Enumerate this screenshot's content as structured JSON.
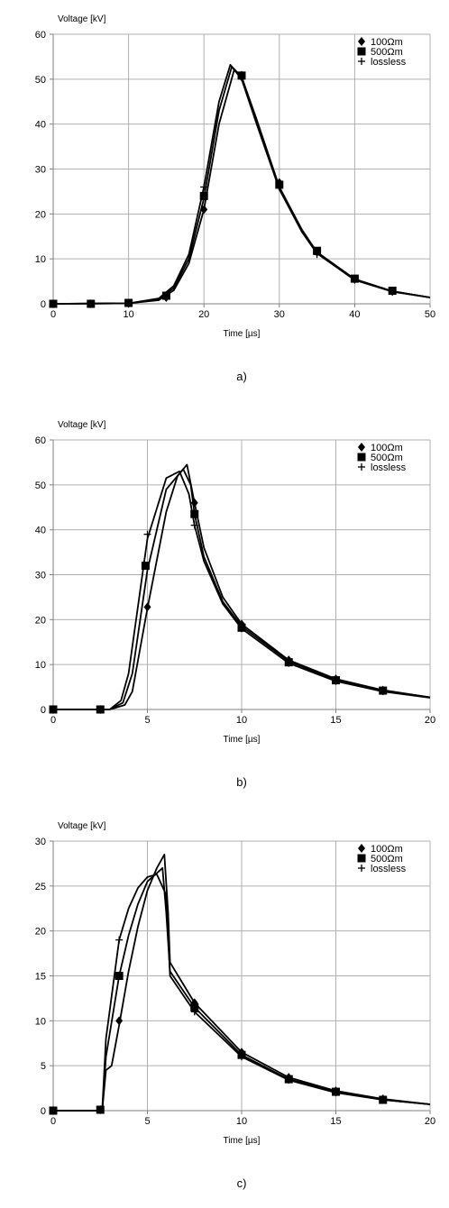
{
  "chart_data": [
    {
      "type": "line",
      "xlabel": "Time [µs]",
      "ylabel": "Voltage [kV]",
      "xlim": [
        0,
        50
      ],
      "ylim": [
        0,
        60
      ],
      "xticks": [
        "0",
        "10",
        "20",
        "30",
        "40",
        "50"
      ],
      "yticks": [
        "0",
        "10",
        "20",
        "30",
        "40",
        "50",
        "60"
      ],
      "grid": true,
      "legend_position": "top-right",
      "caption": "a)",
      "series": [
        {
          "name": "100Ωm",
          "marker": "diamond",
          "points": [
            [
              0,
              0
            ],
            [
              10,
              0.1
            ],
            [
              14,
              0.8
            ],
            [
              16,
              3
            ],
            [
              18,
              9
            ],
            [
              20,
              21
            ],
            [
              22,
              40
            ],
            [
              24,
              52
            ],
            [
              25,
              50.5
            ],
            [
              27,
              41
            ],
            [
              30,
              26
            ],
            [
              33,
              16.5
            ],
            [
              35,
              11.5
            ],
            [
              40,
              5.5
            ],
            [
              45,
              2.8
            ],
            [
              50,
              1.4
            ]
          ],
          "markers": [
            [
              0,
              0
            ],
            [
              5,
              0
            ],
            [
              10,
              0.1
            ],
            [
              15,
              1.4
            ],
            [
              20,
              21
            ],
            [
              25,
              50.5
            ],
            [
              30,
              27
            ],
            [
              35,
              11.5
            ],
            [
              40,
              5.5
            ],
            [
              45,
              2.8
            ]
          ]
        },
        {
          "name": "500Ωm",
          "marker": "square",
          "points": [
            [
              0,
              0
            ],
            [
              10,
              0.1
            ],
            [
              14,
              1
            ],
            [
              16,
              3.5
            ],
            [
              18,
              10
            ],
            [
              20,
              23.5
            ],
            [
              22,
              43
            ],
            [
              23.7,
              52.8
            ],
            [
              25,
              50.5
            ],
            [
              27,
              40.5
            ],
            [
              30,
              26
            ],
            [
              33,
              16.2
            ],
            [
              35,
              11.5
            ],
            [
              40,
              5.5
            ],
            [
              45,
              2.8
            ],
            [
              50,
              1.4
            ]
          ],
          "markers": [
            [
              0,
              0
            ],
            [
              5,
              0
            ],
            [
              10,
              0.2
            ],
            [
              15,
              1.8
            ],
            [
              20,
              24
            ],
            [
              25,
              50.8
            ],
            [
              30,
              26.5
            ],
            [
              35,
              11.8
            ],
            [
              40,
              5.6
            ],
            [
              45,
              2.9
            ]
          ]
        },
        {
          "name": "lossless",
          "marker": "plus",
          "points": [
            [
              0,
              0
            ],
            [
              10,
              0.1
            ],
            [
              14,
              1.2
            ],
            [
              16,
              4
            ],
            [
              18,
              11
            ],
            [
              20,
              26
            ],
            [
              22,
              45
            ],
            [
              23.5,
              53.2
            ],
            [
              25,
              50
            ],
            [
              27,
              40
            ],
            [
              30,
              25.5
            ],
            [
              33,
              16
            ],
            [
              35,
              11.2
            ],
            [
              40,
              5.3
            ],
            [
              45,
              2.7
            ],
            [
              50,
              1.4
            ]
          ],
          "markers": [
            [
              0,
              0
            ],
            [
              5,
              0
            ],
            [
              10,
              0.2
            ],
            [
              15,
              2
            ],
            [
              20,
              26
            ],
            [
              25,
              51
            ],
            [
              30,
              26
            ],
            [
              35,
              11
            ],
            [
              40,
              5.3
            ],
            [
              45,
              2.6
            ]
          ]
        }
      ]
    },
    {
      "type": "line",
      "xlabel": "Time [µs]",
      "ylabel": "Voltage [kV]",
      "xlim": [
        0,
        20
      ],
      "ylim": [
        0,
        60
      ],
      "xticks": [
        "0",
        "5",
        "10",
        "15",
        "20"
      ],
      "yticks": [
        "0",
        "10",
        "20",
        "30",
        "40",
        "50",
        "60"
      ],
      "grid": true,
      "legend_position": "top-right",
      "caption": "b)",
      "series": [
        {
          "name": "100Ωm",
          "marker": "diamond",
          "points": [
            [
              0,
              0
            ],
            [
              3,
              0
            ],
            [
              3.8,
              1
            ],
            [
              4.2,
              4
            ],
            [
              5,
              22.5
            ],
            [
              6,
              44
            ],
            [
              6.6,
              52
            ],
            [
              7.1,
              54.5
            ],
            [
              7.5,
              46
            ],
            [
              8,
              36
            ],
            [
              9,
              25
            ],
            [
              10,
              19
            ],
            [
              12.5,
              11
            ],
            [
              15,
              6.8
            ],
            [
              17.5,
              4.3
            ],
            [
              20,
              2.7
            ]
          ],
          "markers": [
            [
              0,
              0
            ],
            [
              2.5,
              0
            ],
            [
              5,
              22.8
            ],
            [
              7.5,
              46
            ],
            [
              10,
              19
            ],
            [
              12.5,
              11
            ],
            [
              15,
              6.8
            ],
            [
              17.5,
              4.3
            ]
          ]
        },
        {
          "name": "500Ωm",
          "marker": "square",
          "points": [
            [
              0,
              0
            ],
            [
              3,
              0
            ],
            [
              3.7,
              1.5
            ],
            [
              4.2,
              8
            ],
            [
              5,
              31
            ],
            [
              6,
              49
            ],
            [
              6.9,
              53.5
            ],
            [
              7.3,
              50
            ],
            [
              7.5,
              43.5
            ],
            [
              8,
              34
            ],
            [
              9,
              24
            ],
            [
              10,
              18.5
            ],
            [
              12.5,
              10.7
            ],
            [
              15,
              6.6
            ],
            [
              17.5,
              4.2
            ],
            [
              20,
              2.7
            ]
          ],
          "markers": [
            [
              0,
              0
            ],
            [
              2.5,
              0
            ],
            [
              4.9,
              32
            ],
            [
              7.5,
              43.5
            ],
            [
              10,
              18.2
            ],
            [
              12.5,
              10.5
            ],
            [
              15,
              6.5
            ],
            [
              17.5,
              4.2
            ]
          ]
        },
        {
          "name": "lossless",
          "marker": "plus",
          "points": [
            [
              0,
              0
            ],
            [
              3,
              0
            ],
            [
              3.6,
              2
            ],
            [
              4,
              8
            ],
            [
              5,
              38
            ],
            [
              6,
              51.5
            ],
            [
              6.7,
              53
            ],
            [
              7.2,
              48
            ],
            [
              7.5,
              41
            ],
            [
              8,
              33
            ],
            [
              9,
              23.5
            ],
            [
              10,
              18
            ],
            [
              12.5,
              10.3
            ],
            [
              15,
              6.3
            ],
            [
              17.5,
              4
            ],
            [
              20,
              2.6
            ]
          ],
          "markers": [
            [
              0,
              0
            ],
            [
              2.5,
              0
            ],
            [
              5,
              39
            ],
            [
              7.5,
              41
            ],
            [
              10,
              18
            ],
            [
              12.5,
              10.3
            ],
            [
              15,
              6.3
            ],
            [
              17.5,
              4
            ]
          ]
        }
      ]
    },
    {
      "type": "line",
      "xlabel": "Time [µs]",
      "ylabel": "Voltage [kV]",
      "xlim": [
        0,
        20
      ],
      "ylim": [
        0,
        30
      ],
      "xticks": [
        "0",
        "5",
        "10",
        "15",
        "20"
      ],
      "yticks": [
        "0",
        "5",
        "10",
        "15",
        "20",
        "25",
        "30"
      ],
      "grid": true,
      "legend_position": "top-right",
      "caption": "c)",
      "series": [
        {
          "name": "100Ωm",
          "marker": "diamond",
          "points": [
            [
              0,
              0
            ],
            [
              2.6,
              0
            ],
            [
              2.8,
              4.5
            ],
            [
              3.1,
              5
            ],
            [
              3.5,
              9.5
            ],
            [
              4,
              15.5
            ],
            [
              4.5,
              20.5
            ],
            [
              5,
              24.5
            ],
            [
              5.5,
              27
            ],
            [
              5.9,
              28.5
            ],
            [
              6.1,
              22
            ],
            [
              6.2,
              16.5
            ],
            [
              7.5,
              12
            ],
            [
              10,
              6.5
            ],
            [
              12.5,
              3.7
            ],
            [
              15,
              2.2
            ],
            [
              17.5,
              1.3
            ],
            [
              20,
              0.7
            ]
          ],
          "markers": [
            [
              0,
              0
            ],
            [
              2.5,
              0.1
            ],
            [
              3.5,
              10
            ],
            [
              7.5,
              12
            ],
            [
              10,
              6.5
            ],
            [
              12.5,
              3.7
            ],
            [
              15,
              2.2
            ],
            [
              17.5,
              1.3
            ]
          ]
        },
        {
          "name": "500Ωm",
          "marker": "square",
          "points": [
            [
              0,
              0
            ],
            [
              2.6,
              0
            ],
            [
              2.8,
              6
            ],
            [
              3.5,
              15
            ],
            [
              4,
              19.5
            ],
            [
              4.5,
              23
            ],
            [
              5,
              25.5
            ],
            [
              5.8,
              27
            ],
            [
              6,
              22
            ],
            [
              6.2,
              15.5
            ],
            [
              7.5,
              11.5
            ],
            [
              10,
              6.2
            ],
            [
              12.5,
              3.5
            ],
            [
              15,
              2.1
            ],
            [
              17.5,
              1.2
            ],
            [
              20,
              0.7
            ]
          ],
          "markers": [
            [
              0,
              0
            ],
            [
              2.5,
              0.1
            ],
            [
              3.5,
              15
            ],
            [
              7.5,
              11.5
            ],
            [
              10,
              6.2
            ],
            [
              12.5,
              3.5
            ],
            [
              15,
              2.1
            ],
            [
              17.5,
              1.2
            ]
          ]
        },
        {
          "name": "lossless",
          "marker": "plus",
          "points": [
            [
              0,
              0
            ],
            [
              2.6,
              0
            ],
            [
              2.8,
              8
            ],
            [
              3.5,
              19
            ],
            [
              4,
              22.5
            ],
            [
              4.5,
              24.8
            ],
            [
              5,
              26
            ],
            [
              5.5,
              26.3
            ],
            [
              6,
              24
            ],
            [
              6.2,
              15
            ],
            [
              7.5,
              11
            ],
            [
              10,
              6
            ],
            [
              12.5,
              3.4
            ],
            [
              15,
              2
            ],
            [
              17.5,
              1.2
            ],
            [
              20,
              0.7
            ]
          ],
          "markers": [
            [
              0,
              0
            ],
            [
              2.5,
              0.1
            ],
            [
              3.5,
              19
            ],
            [
              7.5,
              11
            ],
            [
              10,
              6
            ],
            [
              12.5,
              3.4
            ],
            [
              15,
              2
            ],
            [
              17.5,
              1.2
            ]
          ]
        }
      ]
    }
  ]
}
